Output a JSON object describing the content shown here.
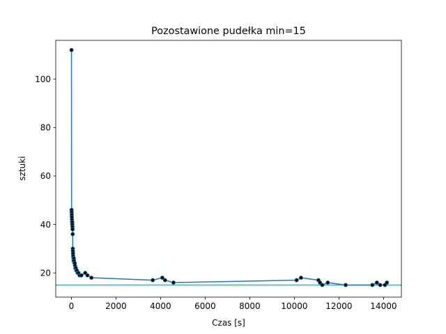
{
  "chart_data": {
    "type": "line",
    "title": "Pozostawione pudełka min=15",
    "xlabel": "Czas [s]",
    "ylabel": "sztuki",
    "xlim": [
      -700,
      14800
    ],
    "ylim": [
      10,
      116
    ],
    "xticks": [
      0,
      2000,
      4000,
      6000,
      8000,
      10000,
      12000,
      14000
    ],
    "yticks": [
      20,
      40,
      60,
      80,
      100
    ],
    "grid": false,
    "series": [
      {
        "color": "#1f77b4",
        "marker_color": "#000000",
        "x": [
          5,
          10,
          14,
          18,
          22,
          26,
          30,
          35,
          40,
          45,
          50,
          55,
          60,
          65,
          70,
          75,
          80,
          90,
          100,
          110,
          120,
          135,
          150,
          165,
          180,
          200,
          220,
          250,
          280,
          320,
          370,
          450,
          620,
          720,
          900,
          3650,
          4080,
          4200,
          4580,
          10100,
          10300,
          11080,
          11150,
          11250,
          11500,
          12300,
          13500,
          13700,
          13850,
          14060,
          14150
        ],
        "y": [
          112,
          46,
          45,
          44,
          43,
          42,
          41,
          40,
          41,
          40,
          39,
          38,
          36,
          30,
          29,
          28,
          27,
          26,
          25,
          26,
          25,
          24,
          24,
          23,
          22,
          22,
          21,
          21,
          20,
          20,
          19,
          19,
          20,
          19,
          18,
          17,
          18,
          17,
          16,
          17,
          18,
          17,
          16,
          15,
          16,
          15,
          15,
          16,
          15,
          15,
          16
        ]
      }
    ],
    "hline": {
      "y": 15,
      "color": "#17becf"
    }
  }
}
